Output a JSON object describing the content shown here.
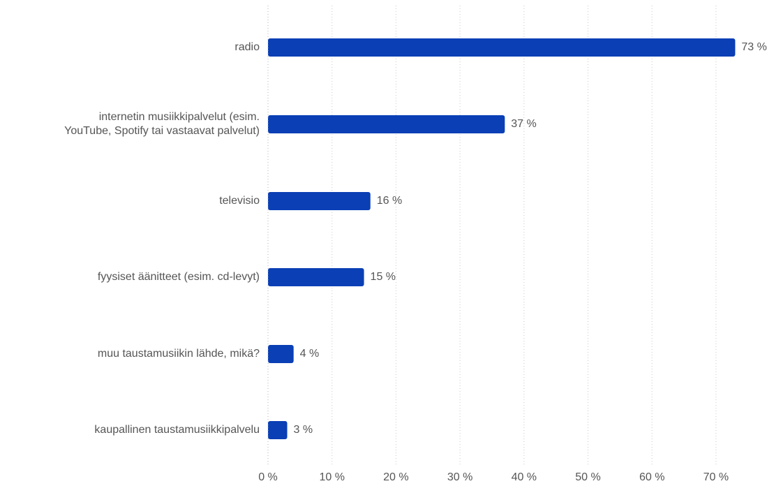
{
  "chart_data": {
    "type": "bar",
    "orientation": "horizontal",
    "categories": [
      "radio",
      "internetin musiikkipalvelut (esim.\nYouTube, Spotify tai vastaavat palvelut)",
      "televisio",
      "fyysiset äänitteet (esim. cd-levyt)",
      "muu taustamusiikin lähde, mikä?",
      "kaupallinen taustamusiikkipalvelu"
    ],
    "values": [
      73,
      37,
      16,
      15,
      4,
      3
    ],
    "value_labels": [
      "73 %",
      "37 %",
      "16 %",
      "15 %",
      "4 %",
      "3 %"
    ],
    "xlim": [
      0,
      75
    ],
    "xticks": [
      0,
      10,
      20,
      30,
      40,
      50,
      60,
      70
    ],
    "xtick_labels": [
      "0 %",
      "10 %",
      "20 %",
      "30 %",
      "40 %",
      "50 %",
      "60 %",
      "70 %"
    ],
    "grid": true,
    "bar_color": "#0a3fb5"
  }
}
